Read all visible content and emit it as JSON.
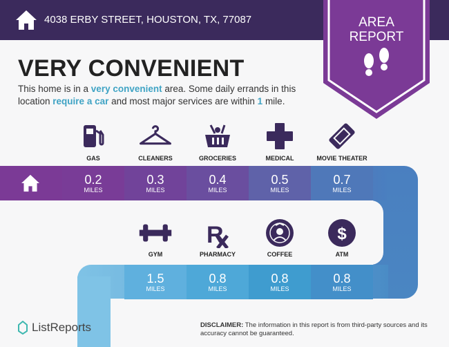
{
  "header": {
    "address": "4038 ERBY STREET, HOUSTON, TX, 77087",
    "badge_line1": "AREA",
    "badge_line2": "REPORT"
  },
  "main": {
    "title": "VERY CONVENIENT",
    "desc": {
      "p1": "This home is in a ",
      "h1": "very convenient",
      "p2": " area. Some daily errands in this location ",
      "h2": "require a car",
      "p3": " and most major services are within ",
      "h3": "1",
      "p4": " mile."
    }
  },
  "unit": "MILES",
  "row1": [
    {
      "label": "GAS",
      "value": "0.2",
      "icon": "gas-pump-icon"
    },
    {
      "label": "CLEANERS",
      "value": "0.3",
      "icon": "hanger-icon"
    },
    {
      "label": "GROCERIES",
      "value": "0.4",
      "icon": "grocery-basket-icon"
    },
    {
      "label": "MEDICAL",
      "value": "0.5",
      "icon": "medical-cross-icon"
    },
    {
      "label": "MOVIE THEATER",
      "value": "0.7",
      "icon": "ticket-icon"
    }
  ],
  "row2": [
    {
      "label": "GYM",
      "value": "1.5",
      "icon": "dumbbell-icon"
    },
    {
      "label": "PHARMACY",
      "value": "0.8",
      "icon": "rx-icon"
    },
    {
      "label": "COFFEE",
      "value": "0.8",
      "icon": "coffee-logo-icon"
    },
    {
      "label": "ATM",
      "value": "0.8",
      "icon": "dollar-icon"
    }
  ],
  "footer": {
    "logo": "ListReports",
    "disclaimer_label": "DISCLAIMER:",
    "disclaimer": " The information in this report is from third-party sources and its accuracy cannot be guaranteed."
  },
  "colors": {
    "header": "#3b2a5c",
    "badge": "#7b3a96",
    "accent": "#3fa3c4"
  }
}
